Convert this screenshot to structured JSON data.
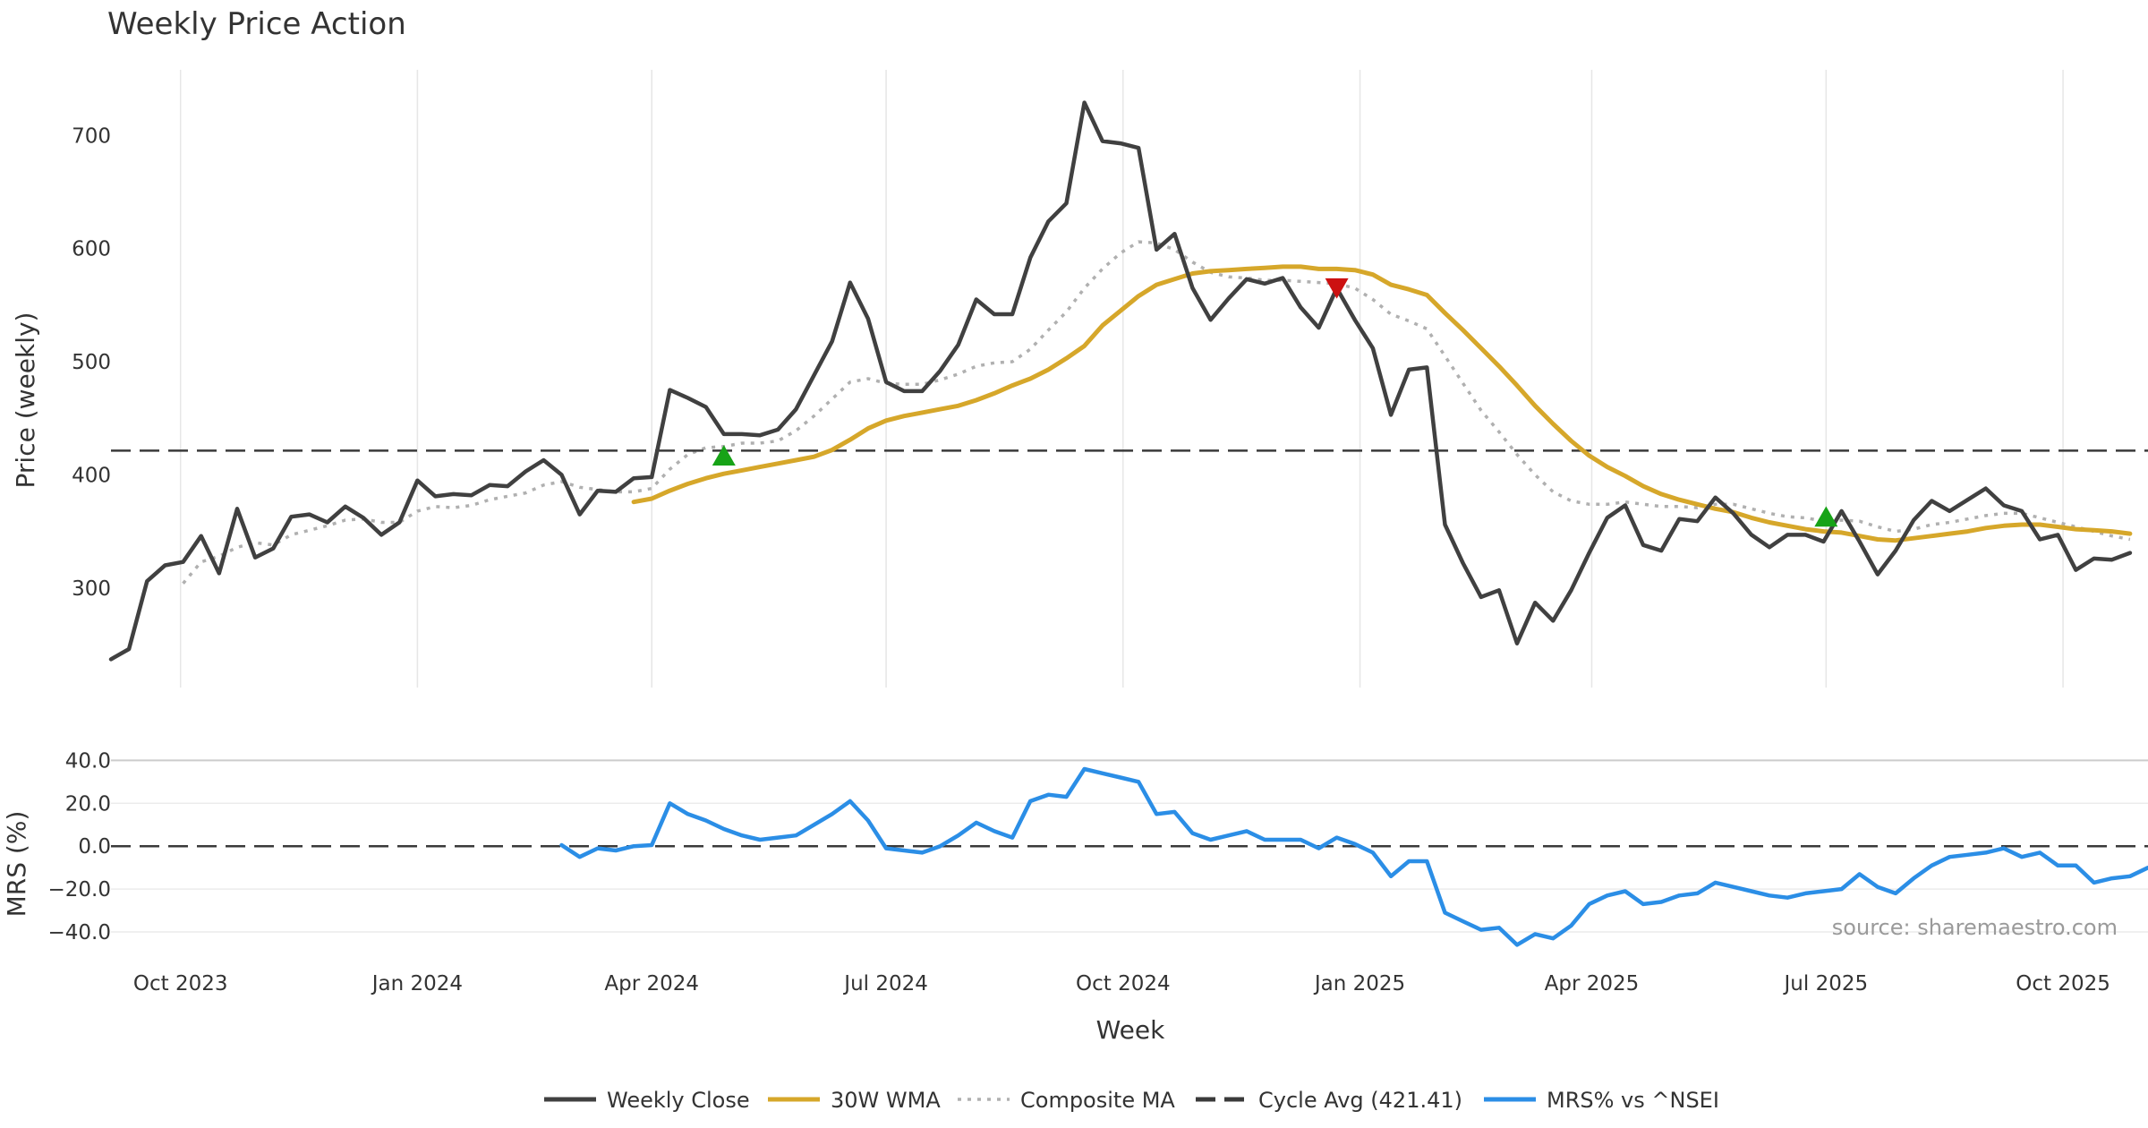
{
  "chart_data": {
    "type": "line",
    "title": "Weekly Price Action",
    "x": [
      "2023-09-04",
      "2023-09-11",
      "2023-09-18",
      "2023-09-25",
      "2023-10-02",
      "2023-10-09",
      "2023-10-16",
      "2023-10-23",
      "2023-10-30",
      "2023-11-06",
      "2023-11-13",
      "2023-11-20",
      "2023-11-27",
      "2023-12-04",
      "2023-12-11",
      "2023-12-18",
      "2023-12-25",
      "2024-01-01",
      "2024-01-08",
      "2024-01-15",
      "2024-01-22",
      "2024-01-29",
      "2024-02-05",
      "2024-02-12",
      "2024-02-19",
      "2024-02-26",
      "2024-03-04",
      "2024-03-11",
      "2024-03-18",
      "2024-03-25",
      "2024-04-01",
      "2024-04-08",
      "2024-04-15",
      "2024-04-22",
      "2024-04-29",
      "2024-05-06",
      "2024-05-13",
      "2024-05-20",
      "2024-05-27",
      "2024-06-03",
      "2024-06-10",
      "2024-06-17",
      "2024-06-24",
      "2024-07-01",
      "2024-07-08",
      "2024-07-15",
      "2024-07-22",
      "2024-07-29",
      "2024-08-05",
      "2024-08-12",
      "2024-08-19",
      "2024-08-26",
      "2024-09-02",
      "2024-09-09",
      "2024-09-16",
      "2024-09-23",
      "2024-09-30",
      "2024-10-07",
      "2024-10-14",
      "2024-10-21",
      "2024-10-28",
      "2024-11-04",
      "2024-11-11",
      "2024-11-18",
      "2024-11-25",
      "2024-12-02",
      "2024-12-09",
      "2024-12-16",
      "2024-12-23",
      "2024-12-30",
      "2025-01-06",
      "2025-01-13",
      "2025-01-20",
      "2025-01-27",
      "2025-02-03",
      "2025-02-10",
      "2025-02-17",
      "2025-02-24",
      "2025-03-03",
      "2025-03-10",
      "2025-03-17",
      "2025-03-24",
      "2025-03-31",
      "2025-04-07",
      "2025-04-14",
      "2025-04-21",
      "2025-04-28",
      "2025-05-05",
      "2025-05-12",
      "2025-05-19",
      "2025-05-26",
      "2025-06-02",
      "2025-06-09",
      "2025-06-16",
      "2025-06-23",
      "2025-06-30",
      "2025-07-07",
      "2025-07-14",
      "2025-07-21",
      "2025-07-28",
      "2025-08-04",
      "2025-08-11",
      "2025-08-18",
      "2025-08-25",
      "2025-09-01",
      "2025-09-08",
      "2025-09-15",
      "2025-09-22",
      "2025-09-29",
      "2025-10-06",
      "2025-10-13",
      "2025-10-20",
      "2025-10-27",
      "2025-11-03"
    ],
    "x_range": [
      "2023-09-04",
      "2025-11-03"
    ],
    "x_ticks": [
      {
        "date": "2023-10-01",
        "label": "Oct 2023"
      },
      {
        "date": "2024-01-01",
        "label": "Jan 2024"
      },
      {
        "date": "2024-04-01",
        "label": "Apr 2024"
      },
      {
        "date": "2024-07-01",
        "label": "Jul 2024"
      },
      {
        "date": "2024-10-01",
        "label": "Oct 2024"
      },
      {
        "date": "2025-01-01",
        "label": "Jan 2025"
      },
      {
        "date": "2025-04-01",
        "label": "Apr 2025"
      },
      {
        "date": "2025-07-01",
        "label": "Jul 2025"
      },
      {
        "date": "2025-10-01",
        "label": "Oct 2025"
      }
    ],
    "xlabel": "Week",
    "price_panel": {
      "ylabel": "Price (weekly)",
      "ylim": [
        212,
        758
      ],
      "y_ticks": [
        300,
        400,
        500,
        600,
        700
      ],
      "series": [
        {
          "name": "Weekly Close",
          "color": "#404040",
          "style": "solid",
          "values": [
            237,
            246,
            306,
            320,
            323,
            346,
            313,
            370,
            327,
            335,
            363,
            365,
            358,
            372,
            362,
            347,
            358,
            395,
            381,
            383,
            382,
            391,
            390,
            403,
            413,
            400,
            365,
            386,
            385,
            397,
            398,
            475,
            468,
            460,
            436,
            436,
            435,
            440,
            458,
            488,
            518,
            570,
            538,
            482,
            474,
            474,
            492,
            515,
            555,
            542,
            542,
            592,
            624,
            640,
            729,
            695,
            693,
            689,
            599,
            613,
            565,
            537,
            556,
            573,
            569,
            574,
            548,
            530,
            565,
            537,
            512,
            453,
            493,
            495,
            356,
            322,
            292,
            298,
            251,
            287,
            271,
            298,
            331,
            362,
            373,
            338,
            333,
            361,
            359,
            380,
            366,
            347,
            336,
            347,
            347,
            341,
            368,
            341,
            312,
            333,
            360,
            377,
            368,
            378,
            388,
            373,
            368,
            343,
            347,
            316,
            326,
            325,
            331
          ]
        },
        {
          "name": "30W WMA",
          "color": "#d6a72a",
          "style": "solid",
          "values": [
            null,
            null,
            null,
            null,
            null,
            null,
            null,
            null,
            null,
            null,
            null,
            null,
            null,
            null,
            null,
            null,
            null,
            null,
            null,
            null,
            null,
            null,
            null,
            null,
            null,
            null,
            null,
            null,
            null,
            376,
            379,
            386,
            392,
            397,
            401,
            404,
            407,
            410,
            413,
            416,
            422,
            431,
            441,
            448,
            452,
            455,
            458,
            461,
            466,
            472,
            479,
            485,
            493,
            503,
            514,
            532,
            545,
            558,
            568,
            573,
            578,
            580,
            581,
            582,
            583,
            584,
            584,
            582,
            582,
            581,
            577,
            568,
            564,
            559,
            543,
            528,
            512,
            496,
            479,
            461,
            445,
            430,
            417,
            407,
            399,
            390,
            383,
            378,
            374,
            370,
            367,
            362,
            358,
            355,
            352,
            350,
            349,
            346,
            343,
            342,
            344,
            346,
            348,
            350,
            353,
            355,
            356,
            356,
            354,
            352,
            351,
            350,
            348
          ]
        },
        {
          "name": "Composite MA",
          "color": "#b0b0b0",
          "style": "dotted",
          "values": [
            null,
            null,
            null,
            null,
            304,
            323,
            328,
            336,
            340,
            338,
            347,
            351,
            355,
            360,
            361,
            358,
            358,
            368,
            372,
            371,
            373,
            378,
            381,
            384,
            391,
            394,
            389,
            387,
            385,
            385,
            388,
            405,
            418,
            424,
            425,
            428,
            428,
            430,
            439,
            452,
            467,
            482,
            485,
            481,
            480,
            480,
            484,
            489,
            496,
            499,
            500,
            511,
            528,
            544,
            565,
            582,
            596,
            606,
            605,
            599,
            588,
            579,
            575,
            574,
            572,
            572,
            571,
            570,
            569,
            565,
            555,
            542,
            536,
            529,
            505,
            481,
            457,
            438,
            418,
            400,
            385,
            377,
            374,
            374,
            376,
            374,
            372,
            372,
            371,
            374,
            374,
            370,
            366,
            363,
            362,
            359,
            360,
            359,
            354,
            350,
            352,
            356,
            358,
            361,
            364,
            366,
            366,
            362,
            358,
            354,
            350,
            346,
            343
          ]
        },
        {
          "name": "Cycle Avg (421.41)",
          "color": "#3a3a3a",
          "style": "dashed",
          "constant": 421.41
        }
      ],
      "markers": [
        {
          "shape": "triangle-up",
          "color": "#17a317",
          "date": "2024-04-29",
          "value": 416
        },
        {
          "shape": "triangle-down",
          "color": "#cc1111",
          "date": "2024-12-23",
          "value": 566
        },
        {
          "shape": "triangle-up",
          "color": "#17a317",
          "date": "2025-07-01",
          "value": 362
        }
      ]
    },
    "mrs_panel": {
      "ylabel": "MRS (%)",
      "ylim": [
        -50,
        46
      ],
      "y_ticks": [
        40,
        20,
        0,
        -20,
        -40
      ],
      "y_tick_labels": [
        "40.0",
        "20.0",
        "0.0",
        "−20.0",
        "−40.0"
      ],
      "series": [
        {
          "name": "MRS% vs ^NSEI",
          "color": "#2b8ee6",
          "style": "solid",
          "values": [
            null,
            null,
            null,
            null,
            null,
            null,
            null,
            null,
            null,
            null,
            null,
            null,
            null,
            null,
            null,
            null,
            null,
            null,
            null,
            null,
            null,
            null,
            null,
            null,
            null,
            0.5,
            -5,
            -1,
            -2,
            0,
            0.5,
            20,
            15,
            12,
            8,
            5,
            3,
            4,
            5,
            10,
            15,
            21,
            12,
            -1,
            -2,
            -3,
            0,
            5,
            11,
            7,
            4,
            21,
            24,
            23,
            36,
            34,
            32,
            30,
            15,
            16,
            6,
            3,
            5,
            7,
            3,
            3,
            3,
            -1,
            4,
            1,
            -3,
            -14,
            -7,
            -7,
            -31,
            -35,
            -39,
            -38,
            -46,
            -41,
            -43,
            -37,
            -27,
            -23,
            -21,
            -27,
            -26,
            -23,
            -22,
            -17,
            -19,
            -21,
            -23,
            -24,
            -22,
            -21,
            -20,
            -13,
            -19,
            -22,
            -15,
            -9,
            -5,
            -4,
            -3,
            -1,
            -5,
            -3,
            -9,
            -9,
            -17,
            -15,
            -14,
            -10
          ]
        },
        {
          "name": "zero-line",
          "color": "#3a3a3a",
          "style": "dashed",
          "constant": 0
        }
      ]
    },
    "legend": [
      {
        "label": "Weekly Close",
        "color": "#404040",
        "style": "solid"
      },
      {
        "label": "30W WMA",
        "color": "#d6a72a",
        "style": "solid"
      },
      {
        "label": "Composite MA",
        "color": "#b0b0b0",
        "style": "dotted"
      },
      {
        "label": "Cycle Avg (421.41)",
        "color": "#3a3a3a",
        "style": "dashed"
      },
      {
        "label": "MRS% vs ^NSEI",
        "color": "#2b8ee6",
        "style": "solid"
      }
    ],
    "legend_position": "bottom-center",
    "source": "source: sharemaestro.com"
  }
}
